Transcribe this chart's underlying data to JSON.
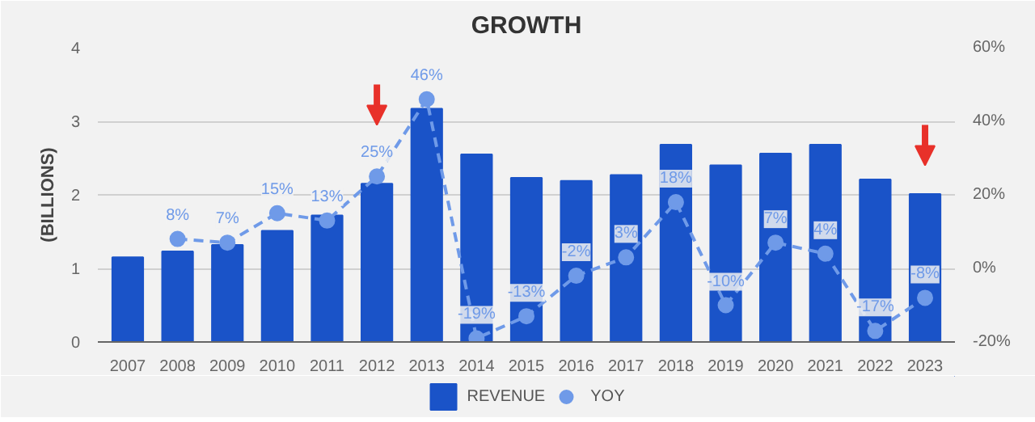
{
  "chart_data": {
    "type": "bar",
    "title": "GROWTH",
    "ylabel": "(BILLIONS)",
    "categories": [
      "2007",
      "2008",
      "2009",
      "2010",
      "2011",
      "2012",
      "2013",
      "2014",
      "2015",
      "2016",
      "2017",
      "2018",
      "2019",
      "2020",
      "2021",
      "2022",
      "2023"
    ],
    "series": [
      {
        "name": "REVENUE",
        "color": "#1a53c8",
        "values": [
          1.15,
          1.23,
          1.32,
          1.51,
          1.72,
          2.15,
          3.17,
          2.55,
          2.23,
          2.19,
          2.27,
          2.68,
          2.4,
          2.56,
          2.68,
          2.21,
          2.01
        ]
      },
      {
        "name": "YOY",
        "type": "line",
        "axis": "y2",
        "color": "#6f9ae8",
        "line_style": "dashed",
        "marker": "circle",
        "values": [
          null,
          8,
          7,
          15,
          13,
          25,
          46,
          -19,
          -13,
          -2,
          3,
          18,
          -10,
          7,
          4,
          -17,
          -8
        ],
        "value_labels": [
          null,
          "8%",
          "7%",
          "15%",
          "13%",
          "25%",
          "46%",
          "-19%",
          "-13%",
          "-2%",
          "3%",
          "18%",
          "-10%",
          "7%",
          "4%",
          "-17%",
          "-8%"
        ]
      }
    ],
    "ylim": [
      0,
      4
    ],
    "yticks": [
      0,
      1,
      2,
      3,
      4
    ],
    "y2lim": [
      -20,
      60
    ],
    "y2ticks": [
      {
        "value": -20,
        "label": "-20%"
      },
      {
        "value": 0,
        "label": "0%"
      },
      {
        "value": 20,
        "label": "20%"
      },
      {
        "value": 40,
        "label": "40%"
      },
      {
        "value": 60,
        "label": "60%"
      }
    ],
    "grid": "y",
    "legend": "bottom"
  }
}
